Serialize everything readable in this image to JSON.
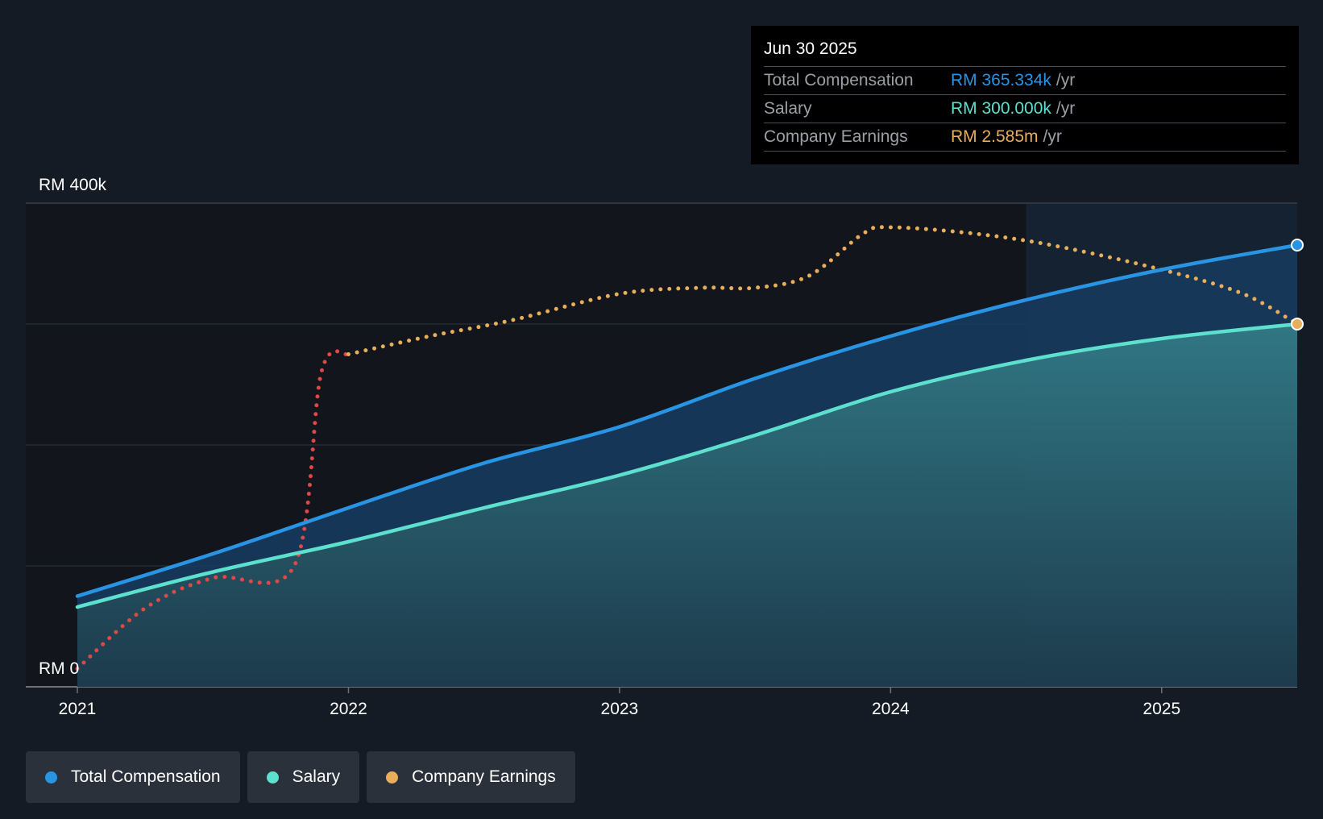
{
  "colors": {
    "total": "#2894e3",
    "salary": "#5ee0cf",
    "earnings": "#e9ae5a",
    "earnings_negative": "#e04848",
    "background": "#151b24",
    "tooltip_bg": "#000000",
    "legend_bg": "#2a313b"
  },
  "tooltip": {
    "date": "Jun 30 2025",
    "rows": [
      {
        "label": "Total Compensation",
        "value": "RM 365.334k",
        "unit": "/yr"
      },
      {
        "label": "Salary",
        "value": "RM 300.000k",
        "unit": "/yr"
      },
      {
        "label": "Company Earnings",
        "value": "RM 2.585m",
        "unit": "/yr"
      }
    ]
  },
  "legend": [
    {
      "label": "Total Compensation"
    },
    {
      "label": "Salary"
    },
    {
      "label": "Company Earnings"
    }
  ],
  "chart_data": {
    "type": "line",
    "title": "",
    "xlabel": "",
    "ylabel": "",
    "ylim": [
      0,
      400
    ],
    "y_unit": "RM k",
    "y_tick_labels": [
      "RM 0",
      "RM 400k"
    ],
    "y_gridlines": [
      0,
      100,
      200,
      300,
      400
    ],
    "x_range": [
      2021.0,
      2025.5
    ],
    "x_ticks": [
      2021,
      2022,
      2023,
      2024,
      2025
    ],
    "x_tick_labels": [
      "2021",
      "2022",
      "2023",
      "2024",
      "2025"
    ],
    "forecast_start": 2024.5,
    "series": [
      {
        "name": "Total Compensation",
        "x": [
          2021.0,
          2021.5,
          2022.0,
          2022.5,
          2023.0,
          2023.5,
          2024.0,
          2024.5,
          2025.0,
          2025.5
        ],
        "values": [
          75,
          110,
          148,
          185,
          215,
          255,
          290,
          320,
          345,
          365.334
        ]
      },
      {
        "name": "Salary",
        "x": [
          2021.0,
          2021.5,
          2022.0,
          2022.5,
          2023.0,
          2023.5,
          2024.0,
          2024.5,
          2025.0,
          2025.5
        ],
        "values": [
          66,
          95,
          120,
          148,
          175,
          208,
          244,
          270,
          288,
          300
        ]
      },
      {
        "name": "Company Earnings",
        "scale": "relative",
        "x": [
          2021.0,
          2021.25,
          2021.5,
          2021.8,
          2021.9,
          2022.0,
          2022.3,
          2022.6,
          2023.0,
          2023.3,
          2023.5,
          2023.7,
          2023.9,
          2024.0,
          2024.3,
          2024.6,
          2025.0,
          2025.3,
          2025.5
        ],
        "values": [
          15,
          65,
          90,
          100,
          260,
          275,
          290,
          303,
          325,
          330,
          330,
          340,
          375,
          380,
          375,
          365,
          345,
          325,
          300
        ]
      }
    ]
  }
}
